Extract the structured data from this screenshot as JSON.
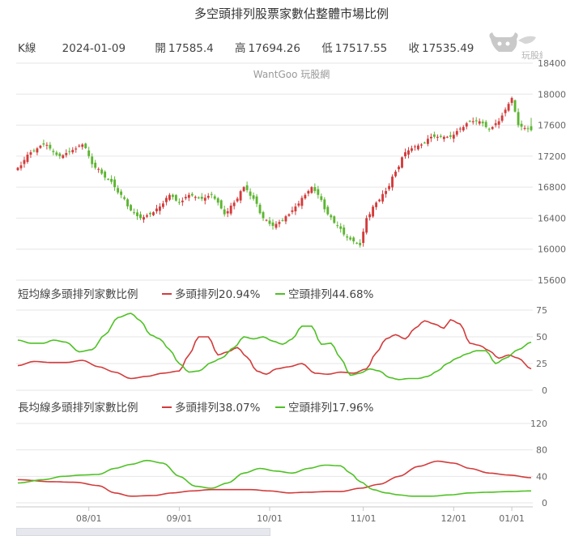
{
  "title": "多空頭排列股票家數佔整體市場比例",
  "kline": {
    "label": "K線",
    "date": "2024-01-09",
    "open_label": "開",
    "open": "17585.4",
    "high_label": "高",
    "high": "17694.26",
    "low_label": "低",
    "low": "17517.55",
    "close_label": "收",
    "close": "17535.49"
  },
  "logo_text": "玩股網",
  "watermark": "WantGoo 玩股網",
  "colors": {
    "up": "#d33b3b",
    "down": "#5cb531",
    "bull_line": "#d33b3b",
    "bear_line": "#4fc125",
    "grid": "#e6e6e6"
  },
  "chart_data": [
    {
      "type": "candlestick",
      "title": "",
      "x_tick_labels": [
        "08/01",
        "09/01",
        "10/01",
        "11/01",
        "12/01",
        "01/01"
      ],
      "y_ticks": [
        15600,
        16000,
        16400,
        16800,
        17200,
        17600,
        18000,
        18400
      ],
      "ylim": [
        15600,
        18400
      ],
      "grid": true,
      "anchors": [
        [
          0,
          17050
        ],
        [
          4,
          17250
        ],
        [
          8,
          17350
        ],
        [
          13,
          17200
        ],
        [
          17,
          17280
        ],
        [
          20,
          17350
        ],
        [
          24,
          17050
        ],
        [
          28,
          16900
        ],
        [
          32,
          16700
        ],
        [
          35,
          16500
        ],
        [
          38,
          16400
        ],
        [
          41,
          16450
        ],
        [
          44,
          16550
        ],
        [
          47,
          16700
        ],
        [
          50,
          16600
        ],
        [
          53,
          16700
        ],
        [
          57,
          16650
        ],
        [
          60,
          16700
        ],
        [
          62,
          16600
        ],
        [
          64,
          16450
        ],
        [
          67,
          16600
        ],
        [
          70,
          16800
        ],
        [
          73,
          16650
        ],
        [
          76,
          16400
        ],
        [
          79,
          16300
        ],
        [
          81,
          16350
        ],
        [
          84,
          16450
        ],
        [
          86,
          16550
        ],
        [
          89,
          16700
        ],
        [
          91,
          16800
        ],
        [
          93,
          16700
        ],
        [
          96,
          16450
        ],
        [
          99,
          16300
        ],
        [
          102,
          16150
        ],
        [
          104,
          16100
        ],
        [
          106,
          16050
        ],
        [
          108,
          16400
        ],
        [
          111,
          16600
        ],
        [
          114,
          16750
        ],
        [
          117,
          17000
        ],
        [
          120,
          17250
        ],
        [
          122,
          17300
        ],
        [
          125,
          17350
        ],
        [
          128,
          17450
        ],
        [
          131,
          17450
        ],
        [
          134,
          17450
        ],
        [
          137,
          17550
        ],
        [
          140,
          17650
        ],
        [
          143,
          17650
        ],
        [
          146,
          17550
        ],
        [
          149,
          17650
        ],
        [
          151,
          17800
        ],
        [
          153,
          17950
        ],
        [
          155,
          17600
        ],
        [
          157,
          17560
        ],
        [
          159,
          17540
        ]
      ]
    },
    {
      "type": "line",
      "title": "短均線多頭排列家數比例",
      "y_ticks": [
        0,
        25,
        50,
        75
      ],
      "ylim": [
        0,
        75
      ],
      "series": [
        {
          "name": "多頭排列",
          "last_value": "20.94%",
          "anchors": [
            [
              0,
              23
            ],
            [
              5,
              27
            ],
            [
              10,
              26
            ],
            [
              15,
              26
            ],
            [
              20,
              28
            ],
            [
              25,
              22
            ],
            [
              30,
              17
            ],
            [
              35,
              11
            ],
            [
              40,
              13
            ],
            [
              45,
              16
            ],
            [
              50,
              18
            ],
            [
              53,
              33
            ],
            [
              56,
              50
            ],
            [
              59,
              50
            ],
            [
              62,
              33
            ],
            [
              65,
              36
            ],
            [
              68,
              40
            ],
            [
              71,
              31
            ],
            [
              74,
              18
            ],
            [
              77,
              15
            ],
            [
              80,
              20
            ],
            [
              84,
              22
            ],
            [
              88,
              25
            ],
            [
              92,
              16
            ],
            [
              96,
              15
            ],
            [
              100,
              17
            ],
            [
              104,
              16
            ],
            [
              108,
              20
            ],
            [
              111,
              35
            ],
            [
              114,
              48
            ],
            [
              117,
              52
            ],
            [
              120,
              48
            ],
            [
              123,
              58
            ],
            [
              126,
              65
            ],
            [
              129,
              62
            ],
            [
              132,
              58
            ],
            [
              134,
              66
            ],
            [
              137,
              62
            ],
            [
              140,
              44
            ],
            [
              143,
              42
            ],
            [
              146,
              37
            ],
            [
              149,
              30
            ],
            [
              152,
              33
            ],
            [
              155,
              30
            ],
            [
              159,
              20
            ]
          ]
        },
        {
          "name": "空頭排列",
          "last_value": "44.68%",
          "anchors": [
            [
              0,
              47
            ],
            [
              4,
              44
            ],
            [
              8,
              44
            ],
            [
              11,
              47
            ],
            [
              15,
              45
            ],
            [
              19,
              36
            ],
            [
              23,
              38
            ],
            [
              27,
              52
            ],
            [
              31,
              68
            ],
            [
              35,
              72
            ],
            [
              38,
              65
            ],
            [
              41,
              52
            ],
            [
              44,
              48
            ],
            [
              47,
              38
            ],
            [
              50,
              25
            ],
            [
              53,
              17
            ],
            [
              56,
              18
            ],
            [
              60,
              26
            ],
            [
              63,
              30
            ],
            [
              67,
              40
            ],
            [
              70,
              50
            ],
            [
              73,
              48
            ],
            [
              76,
              50
            ],
            [
              79,
              46
            ],
            [
              82,
              43
            ],
            [
              85,
              48
            ],
            [
              88,
              60
            ],
            [
              91,
              60
            ],
            [
              94,
              43
            ],
            [
              97,
              44
            ],
            [
              100,
              30
            ],
            [
              103,
              14
            ],
            [
              106,
              16
            ],
            [
              109,
              20
            ],
            [
              112,
              18
            ],
            [
              115,
              12
            ],
            [
              118,
              10
            ],
            [
              121,
              11
            ],
            [
              124,
              11
            ],
            [
              127,
              13
            ],
            [
              130,
              18
            ],
            [
              133,
              25
            ],
            [
              136,
              30
            ],
            [
              139,
              34
            ],
            [
              142,
              37
            ],
            [
              145,
              37
            ],
            [
              148,
              25
            ],
            [
              151,
              30
            ],
            [
              155,
              38
            ],
            [
              159,
              45
            ]
          ]
        }
      ]
    },
    {
      "type": "line",
      "title": "長均線多頭排列家數比例",
      "y_ticks": [
        0,
        40,
        80,
        120
      ],
      "ylim": [
        0,
        120
      ],
      "series": [
        {
          "name": "多頭排列",
          "last_value": "38.07%",
          "anchors": [
            [
              0,
              35
            ],
            [
              10,
              32
            ],
            [
              18,
              31
            ],
            [
              25,
              26
            ],
            [
              30,
              15
            ],
            [
              35,
              10
            ],
            [
              42,
              11
            ],
            [
              48,
              15
            ],
            [
              54,
              18
            ],
            [
              60,
              20
            ],
            [
              66,
              20
            ],
            [
              72,
              20
            ],
            [
              78,
              18
            ],
            [
              84,
              15
            ],
            [
              90,
              16
            ],
            [
              96,
              17
            ],
            [
              100,
              17
            ],
            [
              106,
              22
            ],
            [
              112,
              28
            ],
            [
              118,
              40
            ],
            [
              124,
              55
            ],
            [
              130,
              63
            ],
            [
              135,
              60
            ],
            [
              140,
              52
            ],
            [
              146,
              45
            ],
            [
              152,
              42
            ],
            [
              159,
              38
            ]
          ]
        },
        {
          "name": "空頭排列",
          "last_value": "17.96%",
          "anchors": [
            [
              0,
              30
            ],
            [
              8,
              35
            ],
            [
              14,
              40
            ],
            [
              20,
              42
            ],
            [
              25,
              43
            ],
            [
              30,
              52
            ],
            [
              35,
              58
            ],
            [
              40,
              64
            ],
            [
              45,
              60
            ],
            [
              50,
              40
            ],
            [
              55,
              25
            ],
            [
              60,
              22
            ],
            [
              65,
              30
            ],
            [
              70,
              45
            ],
            [
              75,
              52
            ],
            [
              80,
              48
            ],
            [
              85,
              45
            ],
            [
              90,
              52
            ],
            [
              95,
              57
            ],
            [
              100,
              56
            ],
            [
              103,
              45
            ],
            [
              106,
              32
            ],
            [
              110,
              20
            ],
            [
              114,
              15
            ],
            [
              118,
              12
            ],
            [
              122,
              10
            ],
            [
              128,
              10
            ],
            [
              134,
              12
            ],
            [
              140,
              15
            ],
            [
              146,
              16
            ],
            [
              152,
              17
            ],
            [
              159,
              18
            ]
          ]
        }
      ]
    }
  ]
}
